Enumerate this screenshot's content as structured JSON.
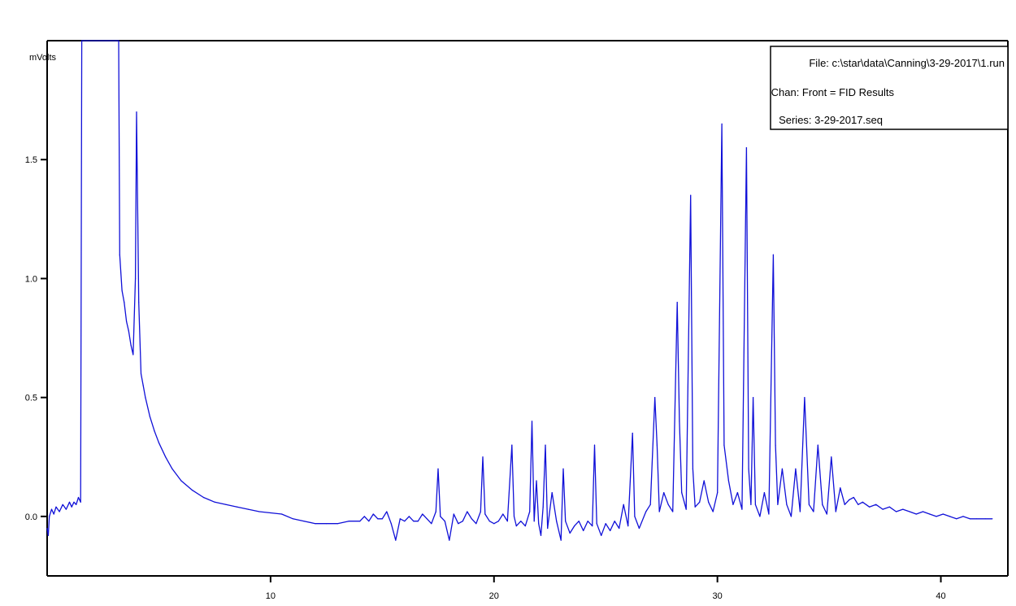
{
  "chart_data": {
    "type": "line",
    "title": "",
    "xlabel": "",
    "ylabel": "mVolts",
    "xlim": [
      0,
      43
    ],
    "ylim": [
      -0.25,
      2.0
    ],
    "x_ticks": [
      {
        "value": 10,
        "label": "10"
      },
      {
        "value": 20,
        "label": "20"
      },
      {
        "value": 30,
        "label": "30"
      },
      {
        "value": 40,
        "label": "40"
      }
    ],
    "y_ticks": [
      {
        "value": 0.0,
        "label": "0.0"
      },
      {
        "value": 0.5,
        "label": "0.5"
      },
      {
        "value": 1.0,
        "label": "1.0"
      },
      {
        "value": 1.5,
        "label": "1.5"
      }
    ],
    "grid": false,
    "legend": {
      "placement": "top-right",
      "entries": [
        "File: c:\\star\\data\\Canning\\3-29-2017\\1.run",
        "Chan: Front = FID Results",
        "Series: 3-29-2017.seq"
      ]
    },
    "series": [
      {
        "name": "",
        "color": "#1010d8",
        "points": [
          [
            0.0,
            -0.05
          ],
          [
            0.05,
            -0.08
          ],
          [
            0.1,
            0.0
          ],
          [
            0.2,
            0.03
          ],
          [
            0.3,
            0.01
          ],
          [
            0.4,
            0.04
          ],
          [
            0.55,
            0.02
          ],
          [
            0.7,
            0.05
          ],
          [
            0.85,
            0.03
          ],
          [
            1.0,
            0.06
          ],
          [
            1.1,
            0.04
          ],
          [
            1.2,
            0.06
          ],
          [
            1.3,
            0.05
          ],
          [
            1.4,
            0.08
          ],
          [
            1.5,
            0.06
          ],
          [
            1.55,
            2.0
          ],
          [
            1.65,
            2.0
          ],
          [
            3.2,
            2.0
          ],
          [
            3.25,
            1.1
          ],
          [
            3.35,
            0.95
          ],
          [
            3.45,
            0.9
          ],
          [
            3.55,
            0.82
          ],
          [
            3.65,
            0.78
          ],
          [
            3.75,
            0.72
          ],
          [
            3.85,
            0.68
          ],
          [
            3.95,
            1.0
          ],
          [
            4.0,
            1.7
          ],
          [
            4.1,
            0.9
          ],
          [
            4.2,
            0.6
          ],
          [
            4.3,
            0.55
          ],
          [
            4.4,
            0.5
          ],
          [
            4.6,
            0.42
          ],
          [
            4.8,
            0.36
          ],
          [
            5.0,
            0.31
          ],
          [
            5.3,
            0.25
          ],
          [
            5.6,
            0.2
          ],
          [
            6.0,
            0.15
          ],
          [
            6.5,
            0.11
          ],
          [
            7.0,
            0.08
          ],
          [
            7.5,
            0.06
          ],
          [
            8.0,
            0.05
          ],
          [
            8.5,
            0.04
          ],
          [
            9.0,
            0.03
          ],
          [
            9.5,
            0.02
          ],
          [
            10.0,
            0.015
          ],
          [
            10.5,
            0.01
          ],
          [
            11.0,
            -0.01
          ],
          [
            11.5,
            -0.02
          ],
          [
            12.0,
            -0.03
          ],
          [
            12.5,
            -0.03
          ],
          [
            13.0,
            -0.03
          ],
          [
            13.5,
            -0.02
          ],
          [
            14.0,
            -0.02
          ],
          [
            14.2,
            0.0
          ],
          [
            14.4,
            -0.02
          ],
          [
            14.6,
            0.01
          ],
          [
            14.8,
            -0.01
          ],
          [
            15.0,
            -0.01
          ],
          [
            15.2,
            0.02
          ],
          [
            15.4,
            -0.03
          ],
          [
            15.6,
            -0.1
          ],
          [
            15.8,
            -0.01
          ],
          [
            16.0,
            -0.02
          ],
          [
            16.2,
            0.0
          ],
          [
            16.4,
            -0.02
          ],
          [
            16.6,
            -0.02
          ],
          [
            16.8,
            0.01
          ],
          [
            17.0,
            -0.01
          ],
          [
            17.2,
            -0.03
          ],
          [
            17.4,
            0.02
          ],
          [
            17.5,
            0.2
          ],
          [
            17.6,
            0.0
          ],
          [
            17.8,
            -0.02
          ],
          [
            18.0,
            -0.1
          ],
          [
            18.2,
            0.01
          ],
          [
            18.4,
            -0.03
          ],
          [
            18.6,
            -0.02
          ],
          [
            18.8,
            0.02
          ],
          [
            19.0,
            -0.01
          ],
          [
            19.2,
            -0.03
          ],
          [
            19.4,
            0.02
          ],
          [
            19.5,
            0.25
          ],
          [
            19.6,
            0.01
          ],
          [
            19.8,
            -0.02
          ],
          [
            20.0,
            -0.03
          ],
          [
            20.2,
            -0.02
          ],
          [
            20.4,
            0.01
          ],
          [
            20.6,
            -0.02
          ],
          [
            20.8,
            0.3
          ],
          [
            20.9,
            0.0
          ],
          [
            21.0,
            -0.04
          ],
          [
            21.2,
            -0.02
          ],
          [
            21.4,
            -0.04
          ],
          [
            21.6,
            0.02
          ],
          [
            21.7,
            0.4
          ],
          [
            21.8,
            -0.02
          ],
          [
            21.9,
            0.15
          ],
          [
            22.0,
            -0.03
          ],
          [
            22.1,
            -0.08
          ],
          [
            22.2,
            0.04
          ],
          [
            22.3,
            0.3
          ],
          [
            22.4,
            -0.05
          ],
          [
            22.6,
            0.1
          ],
          [
            22.8,
            -0.02
          ],
          [
            23.0,
            -0.1
          ],
          [
            23.1,
            0.2
          ],
          [
            23.2,
            -0.02
          ],
          [
            23.4,
            -0.07
          ],
          [
            23.6,
            -0.04
          ],
          [
            23.8,
            -0.02
          ],
          [
            24.0,
            -0.06
          ],
          [
            24.2,
            -0.02
          ],
          [
            24.4,
            -0.04
          ],
          [
            24.5,
            0.3
          ],
          [
            24.6,
            -0.03
          ],
          [
            24.8,
            -0.08
          ],
          [
            25.0,
            -0.03
          ],
          [
            25.2,
            -0.06
          ],
          [
            25.4,
            -0.02
          ],
          [
            25.6,
            -0.05
          ],
          [
            25.8,
            0.05
          ],
          [
            26.0,
            -0.04
          ],
          [
            26.2,
            0.35
          ],
          [
            26.3,
            0.0
          ],
          [
            26.5,
            -0.05
          ],
          [
            26.8,
            0.02
          ],
          [
            27.0,
            0.05
          ],
          [
            27.2,
            0.5
          ],
          [
            27.3,
            0.3
          ],
          [
            27.4,
            0.02
          ],
          [
            27.6,
            0.1
          ],
          [
            27.8,
            0.05
          ],
          [
            28.0,
            0.02
          ],
          [
            28.2,
            0.9
          ],
          [
            28.3,
            0.4
          ],
          [
            28.4,
            0.1
          ],
          [
            28.6,
            0.03
          ],
          [
            28.8,
            1.35
          ],
          [
            28.9,
            0.2
          ],
          [
            29.0,
            0.04
          ],
          [
            29.2,
            0.06
          ],
          [
            29.4,
            0.15
          ],
          [
            29.6,
            0.06
          ],
          [
            29.8,
            0.02
          ],
          [
            30.0,
            0.1
          ],
          [
            30.2,
            1.65
          ],
          [
            30.3,
            0.3
          ],
          [
            30.5,
            0.15
          ],
          [
            30.7,
            0.05
          ],
          [
            30.9,
            0.1
          ],
          [
            31.1,
            0.03
          ],
          [
            31.3,
            1.55
          ],
          [
            31.4,
            0.2
          ],
          [
            31.5,
            0.05
          ],
          [
            31.6,
            0.5
          ],
          [
            31.7,
            0.05
          ],
          [
            31.9,
            0.0
          ],
          [
            32.1,
            0.1
          ],
          [
            32.3,
            0.01
          ],
          [
            32.5,
            1.1
          ],
          [
            32.6,
            0.3
          ],
          [
            32.7,
            0.05
          ],
          [
            32.9,
            0.2
          ],
          [
            33.1,
            0.05
          ],
          [
            33.3,
            0.0
          ],
          [
            33.5,
            0.2
          ],
          [
            33.7,
            0.02
          ],
          [
            33.9,
            0.5
          ],
          [
            34.1,
            0.05
          ],
          [
            34.3,
            0.02
          ],
          [
            34.5,
            0.3
          ],
          [
            34.7,
            0.05
          ],
          [
            34.9,
            0.01
          ],
          [
            35.1,
            0.25
          ],
          [
            35.3,
            0.02
          ],
          [
            35.5,
            0.12
          ],
          [
            35.7,
            0.05
          ],
          [
            35.9,
            0.07
          ],
          [
            36.1,
            0.08
          ],
          [
            36.3,
            0.05
          ],
          [
            36.5,
            0.06
          ],
          [
            36.8,
            0.04
          ],
          [
            37.1,
            0.05
          ],
          [
            37.4,
            0.03
          ],
          [
            37.7,
            0.04
          ],
          [
            38.0,
            0.02
          ],
          [
            38.3,
            0.03
          ],
          [
            38.6,
            0.02
          ],
          [
            38.9,
            0.01
          ],
          [
            39.2,
            0.02
          ],
          [
            39.5,
            0.01
          ],
          [
            39.8,
            0.0
          ],
          [
            40.1,
            0.01
          ],
          [
            40.4,
            0.0
          ],
          [
            40.7,
            -0.01
          ],
          [
            41.0,
            0.0
          ],
          [
            41.3,
            -0.01
          ],
          [
            41.6,
            -0.01
          ],
          [
            42.0,
            -0.01
          ],
          [
            42.3,
            -0.01
          ]
        ]
      }
    ]
  }
}
